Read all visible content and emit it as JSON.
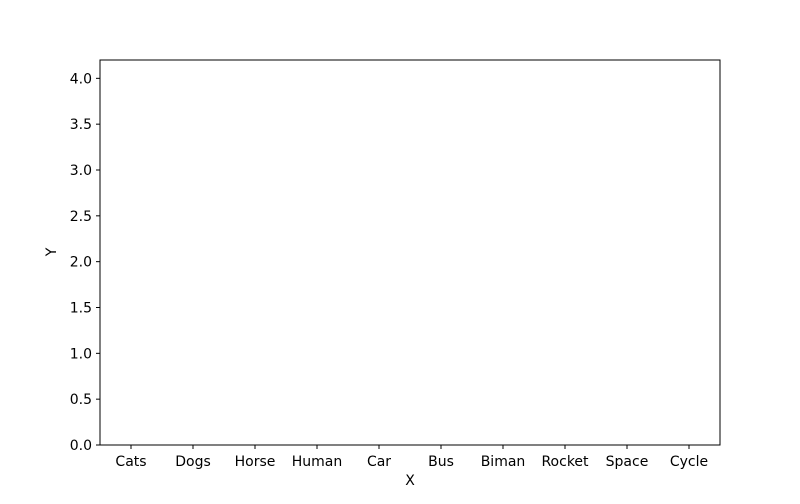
{
  "chart_data": {
    "type": "bar",
    "title": "",
    "xlabel": "X",
    "ylabel": "Y",
    "categories": [
      "Cats",
      "Dogs",
      "Horse",
      "Human",
      "Car",
      "Bus",
      "Biman",
      "Rocket",
      "Space",
      "Cycle"
    ],
    "series": [],
    "ylim": [
      0,
      4.2
    ],
    "yticks": [
      "0.0",
      "0.5",
      "1.0",
      "1.5",
      "2.0",
      "2.5",
      "3.0",
      "3.5",
      "4.0"
    ],
    "grid": false,
    "legend": "none",
    "colors": {
      "axis": "#000000",
      "background": "#ffffff"
    }
  }
}
